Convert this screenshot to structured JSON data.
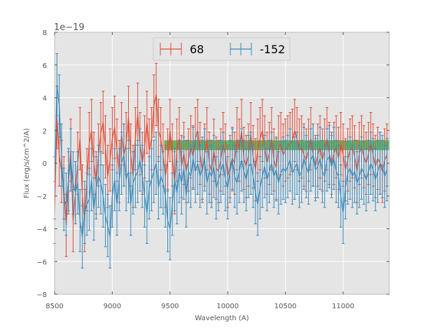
{
  "chart_data": {
    "type": "line",
    "title": "",
    "offset_label": "1e−19",
    "xlabel": "Wavelength (A)",
    "ylabel": "Flux (erg/s/cm^2/A)",
    "xlim": [
      8500,
      11400
    ],
    "ylim": [
      -8,
      8
    ],
    "x_ticks": [
      8500,
      9000,
      9500,
      10000,
      10500,
      11000
    ],
    "x_tick_labels": [
      "8500",
      "9000",
      "9500",
      "10000",
      "10500",
      "11000"
    ],
    "y_ticks": [
      -8,
      -6,
      -4,
      -2,
      0,
      2,
      4,
      6,
      8
    ],
    "y_tick_labels": [
      "−8",
      "−6",
      "−4",
      "−2",
      "0",
      "2",
      "4",
      "6",
      "8"
    ],
    "grid": true,
    "legend_position": "top-center",
    "band": {
      "x_start": 9450,
      "x_end": 11400,
      "y_low": 0.8,
      "y_high": 1.4,
      "color": "#4daf4a"
    },
    "x_start": 8500,
    "x_step": 20,
    "series": [
      {
        "name": "68",
        "color": "#e24a33",
        "error": 1.9,
        "values": [
          -3.0,
          2.8,
          0.5,
          -0.5,
          -1.5,
          -3.8,
          -1.2,
          0.8,
          -3.5,
          -1.8,
          0.0,
          1.5,
          -2.0,
          -3.5,
          -1.0,
          1.2,
          2.0,
          0.0,
          -1.2,
          0.5,
          1.8,
          2.5,
          1.0,
          -0.8,
          0.2,
          1.5,
          2.2,
          0.8,
          -0.5,
          1.8,
          0.5,
          1.2,
          2.8,
          0.5,
          -0.8,
          1.5,
          3.0,
          1.2,
          0.0,
          1.0,
          2.5,
          0.8,
          1.5,
          3.5,
          4.2,
          2.0,
          1.5,
          0.5,
          -0.8,
          0.2,
          2.0,
          0.5,
          -1.2,
          0.8,
          1.5,
          -0.2,
          0.6,
          -0.5,
          0.2,
          1.0,
          0.4,
          1.5,
          2.0,
          0.6,
          -0.5,
          0.5,
          1.5,
          0.0,
          -0.5,
          0.8,
          -0.3,
          -0.5,
          0.2,
          1.2,
          0.5,
          -0.8,
          -0.2,
          0.3,
          0.0,
          1.5,
          0.8,
          2.0,
          0.3,
          -0.2,
          0.5,
          1.8,
          0.4,
          -0.4,
          0.8,
          1.5,
          2.0,
          1.0,
          0.0,
          0.6,
          1.5,
          0.2,
          -0.3,
          1.0,
          1.2,
          0.5,
          0.8,
          1.0,
          1.2,
          1.4,
          2.0,
          1.5,
          0.8,
          1.0,
          0.5,
          0.2,
          0.8,
          1.5,
          0.5,
          -0.2,
          0.5,
          1.0,
          0.2,
          0.8,
          1.5,
          0.6,
          0.0,
          0.6,
          1.0,
          0.3,
          1.2,
          0.5,
          -0.4,
          0.2,
          0.8,
          1.0,
          0.4,
          -0.5,
          0.6,
          1.0,
          0.4,
          0.0,
          0.6,
          1.2,
          0.5,
          -0.2,
          0.3,
          0.0,
          -0.5,
          0.2,
          0.5
        ]
      },
      {
        "name": "-152",
        "color": "#348abd",
        "error": 1.9,
        "values": [
          -1.5,
          4.8,
          3.5,
          0.5,
          -2.2,
          -2.5,
          -1.0,
          0.2,
          -1.2,
          -1.8,
          -1.2,
          -3.5,
          -4.5,
          -3.0,
          -2.5,
          -2.2,
          -1.0,
          -2.8,
          -1.5,
          -0.8,
          -1.2,
          -2.0,
          -3.2,
          -3.8,
          -4.5,
          -2.0,
          -1.0,
          -2.5,
          -1.0,
          0.0,
          0.5,
          -1.0,
          -0.5,
          -2.5,
          -1.2,
          -0.8,
          -0.5,
          0.2,
          -0.8,
          -2.0,
          -3.0,
          -1.5,
          -1.0,
          -0.5,
          0.0,
          -1.5,
          -0.8,
          -1.2,
          -2.0,
          -3.5,
          -4.0,
          -2.5,
          -1.0,
          -1.8,
          -0.5,
          -1.2,
          -0.3,
          -2.0,
          -0.5,
          -0.8,
          0.3,
          -0.5,
          0.0,
          -0.8,
          -0.3,
          0.2,
          -1.2,
          -0.5,
          -0.8,
          -0.2,
          -1.5,
          -1.0,
          -0.5,
          0.0,
          -1.0,
          -1.5,
          -0.5,
          0.2,
          -0.8,
          -1.2,
          -0.5,
          0.2,
          -0.5,
          -1.0,
          -0.2,
          0.0,
          -0.8,
          -1.8,
          -2.5,
          -1.5,
          -0.8,
          -0.2,
          -1.0,
          -0.5,
          0.0,
          -0.8,
          -0.4,
          -1.2,
          -0.6,
          -0.3,
          -0.5,
          -0.2,
          0.2,
          -0.6,
          -0.3,
          0.0,
          -0.8,
          -0.5,
          0.3,
          -0.2,
          -0.6,
          0.2,
          0.5,
          -0.4,
          -0.2,
          0.3,
          -0.5,
          -0.8,
          0.2,
          0.4,
          -0.2,
          0.3,
          -0.5,
          -0.8,
          -2.0,
          -3.0,
          -1.5,
          -0.6,
          -0.3,
          -0.8,
          -0.5,
          -1.2,
          -0.8,
          -0.3,
          -0.6,
          -1.0,
          -0.5,
          0.0,
          -0.4,
          -1.0,
          -0.5,
          0.0,
          -0.2,
          -0.8,
          -0.4
        ]
      }
    ]
  }
}
